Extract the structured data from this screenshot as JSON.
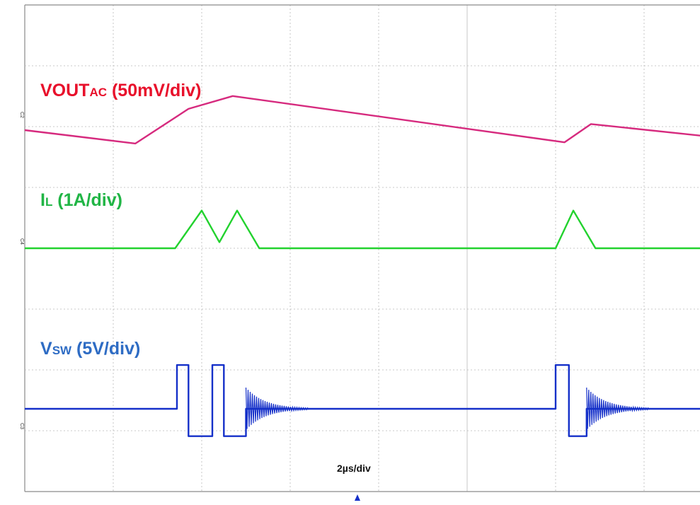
{
  "colors": {
    "vout": "#d62a7e",
    "il": "#22d22e",
    "vsw": "#1530c9",
    "vout_label": "#e8102b",
    "il_label": "#20b545",
    "vsw_label": "#2e6cc4",
    "grid": "#b9b9b9",
    "frame": "#8a8a8a"
  },
  "labels": {
    "vout": {
      "main": "VOUT",
      "sub": "AC",
      "rest": " (50mV/div)"
    },
    "il": {
      "main": "I",
      "sub": "L",
      "rest": " (1A/div)"
    },
    "vsw": {
      "main": "V",
      "sub": "SW",
      "rest": " (5V/div)"
    },
    "timebase": "2µs/div"
  },
  "channel_markers": {
    "vout": "C2",
    "il": "C4",
    "vsw": "C3"
  },
  "chart_data": {
    "type": "line",
    "title": "",
    "grid": true,
    "x_unit": "div",
    "xlim": [
      0,
      10
    ],
    "x_divisions": 10,
    "y_divisions": 8,
    "series": [
      {
        "name": "VOUTAC (50mV/div)",
        "unit": "div",
        "points": [
          [
            0,
            0
          ],
          [
            1.25,
            -0.22
          ],
          [
            1.85,
            0.35
          ],
          [
            2.35,
            0.56
          ],
          [
            6.1,
            -0.2
          ],
          [
            6.4,
            0.1
          ],
          [
            8.35,
            -0.2
          ],
          [
            8.9,
            0.25
          ],
          [
            9.55,
            0.55
          ],
          [
            12.45,
            -0.01
          ]
        ]
      },
      {
        "name": "IL (1A/div)",
        "unit": "div",
        "points": [
          [
            0,
            0
          ],
          [
            1.7,
            0
          ],
          [
            2.0,
            0.62
          ],
          [
            2.2,
            0.1
          ],
          [
            2.4,
            0.62
          ],
          [
            2.65,
            0
          ],
          [
            6.0,
            0
          ],
          [
            6.2,
            0.62
          ],
          [
            6.45,
            0
          ],
          [
            8.4,
            0
          ],
          [
            8.6,
            0.62
          ],
          [
            8.8,
            0.1
          ],
          [
            9.0,
            0.62
          ],
          [
            9.3,
            0
          ],
          [
            12.45,
            0
          ]
        ]
      },
      {
        "name": "VSW (5V/div)",
        "unit": "div",
        "points": [
          [
            0,
            0
          ],
          [
            1.72,
            0
          ],
          [
            1.72,
            0.72
          ],
          [
            1.85,
            0.72
          ],
          [
            1.85,
            -0.45
          ],
          [
            2.12,
            -0.45
          ],
          [
            2.12,
            0.72
          ],
          [
            2.25,
            0.72
          ],
          [
            2.25,
            -0.45
          ],
          [
            2.5,
            -0.45
          ],
          [
            2.5,
            0
          ],
          [
            6.0,
            0
          ],
          [
            6.0,
            0.72
          ],
          [
            6.15,
            0.72
          ],
          [
            6.15,
            -0.45
          ],
          [
            6.35,
            -0.45
          ],
          [
            6.35,
            0
          ],
          [
            8.4,
            0
          ],
          [
            8.4,
            0.72
          ],
          [
            8.55,
            0.72
          ],
          [
            8.55,
            -0.45
          ],
          [
            8.9,
            -0.45
          ],
          [
            8.9,
            0.72
          ],
          [
            9.05,
            0.72
          ],
          [
            9.05,
            -0.45
          ],
          [
            9.3,
            -0.45
          ],
          [
            9.3,
            0
          ],
          [
            12.45,
            0
          ]
        ]
      }
    ]
  }
}
